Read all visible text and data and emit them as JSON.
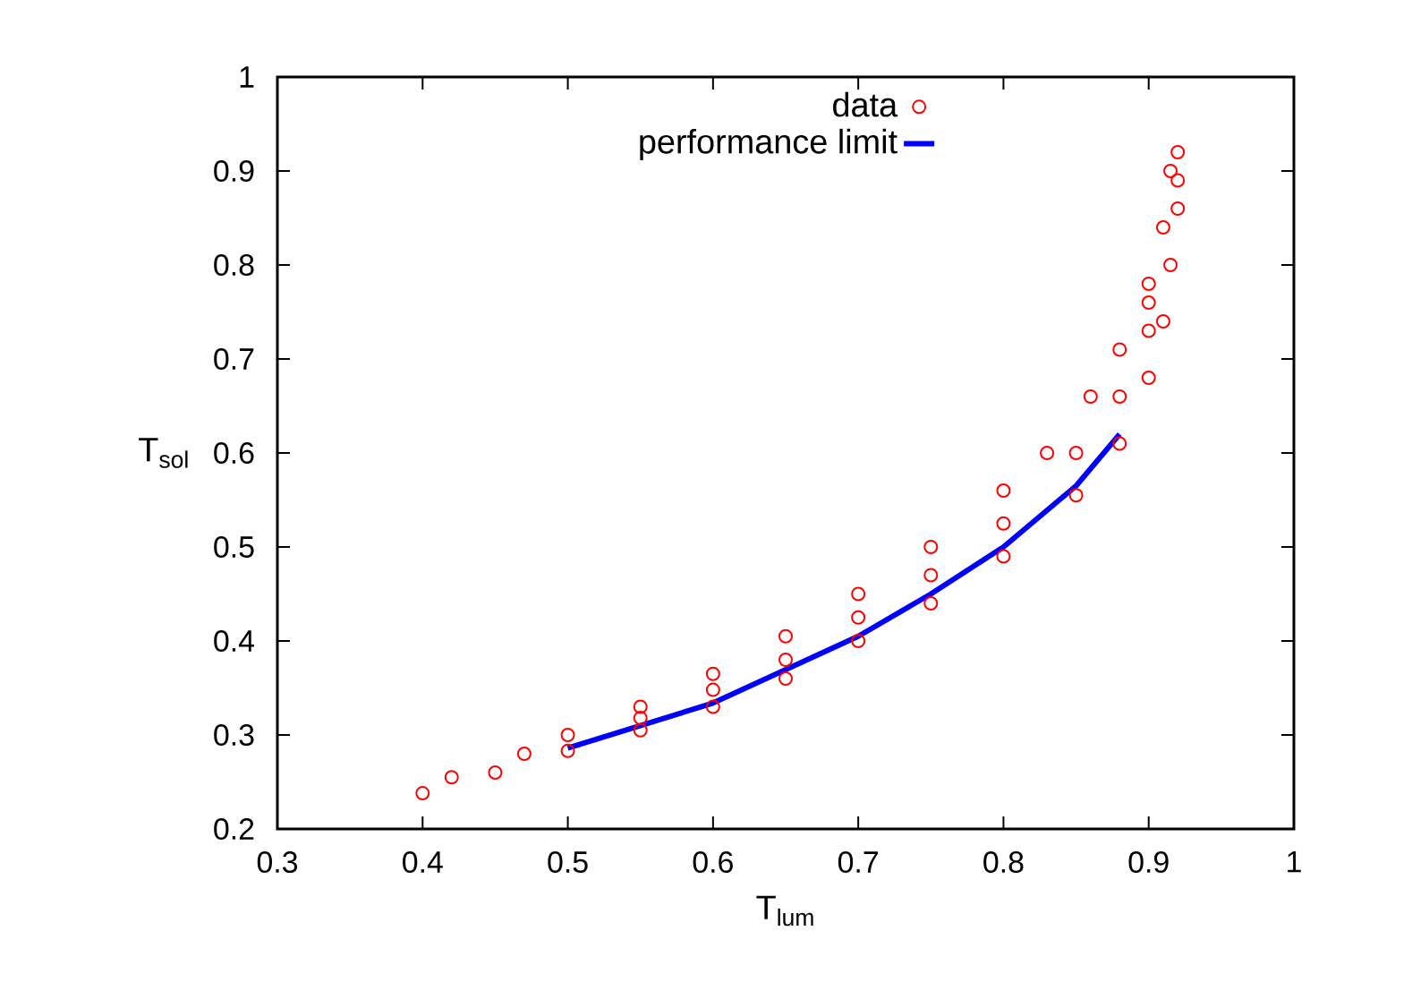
{
  "chart_data": {
    "type": "scatter",
    "xlabel": "T$_{lum}$",
    "ylabel": "T$_{sol}$",
    "xlim": [
      0.3,
      1
    ],
    "ylim": [
      0.2,
      1
    ],
    "xticks": [
      0.3,
      0.4,
      0.5,
      0.6,
      0.7,
      0.8,
      0.9,
      1
    ],
    "yticks": [
      0.2,
      0.3,
      0.4,
      0.5,
      0.6,
      0.7,
      0.8,
      0.9,
      1
    ],
    "grid": false,
    "legend": "top",
    "marker": "circle",
    "series": [
      {
        "name": "data",
        "color": "#ff0000",
        "x": [
          0.4,
          0.42,
          0.45,
          0.47,
          0.5,
          0.5,
          0.55,
          0.55,
          0.55,
          0.6,
          0.6,
          0.6,
          0.65,
          0.65,
          0.65,
          0.7,
          0.7,
          0.7,
          0.75,
          0.75,
          0.75,
          0.8,
          0.8,
          0.8,
          0.83,
          0.85,
          0.85,
          0.86,
          0.88,
          0.88,
          0.88,
          0.9,
          0.9,
          0.9,
          0.9,
          0.91,
          0.91,
          0.915,
          0.915,
          0.92,
          0.92,
          0.92
        ],
        "values": [
          0.238,
          0.255,
          0.26,
          0.28,
          0.283,
          0.3,
          0.305,
          0.318,
          0.33,
          0.33,
          0.348,
          0.365,
          0.36,
          0.38,
          0.405,
          0.4,
          0.425,
          0.45,
          0.44,
          0.47,
          0.5,
          0.49,
          0.525,
          0.56,
          0.6,
          0.555,
          0.6,
          0.66,
          0.61,
          0.66,
          0.71,
          0.68,
          0.73,
          0.76,
          0.78,
          0.74,
          0.84,
          0.8,
          0.9,
          0.86,
          0.89,
          0.92
        ]
      },
      {
        "name": "performance limit",
        "color": "#0000ff",
        "type": "line",
        "marker": "none",
        "x": [
          0.5,
          0.6,
          0.7,
          0.75,
          0.8,
          0.85,
          0.88
        ],
        "values": [
          0.286,
          0.334,
          0.405,
          0.45,
          0.5,
          0.565,
          0.62
        ]
      }
    ]
  }
}
